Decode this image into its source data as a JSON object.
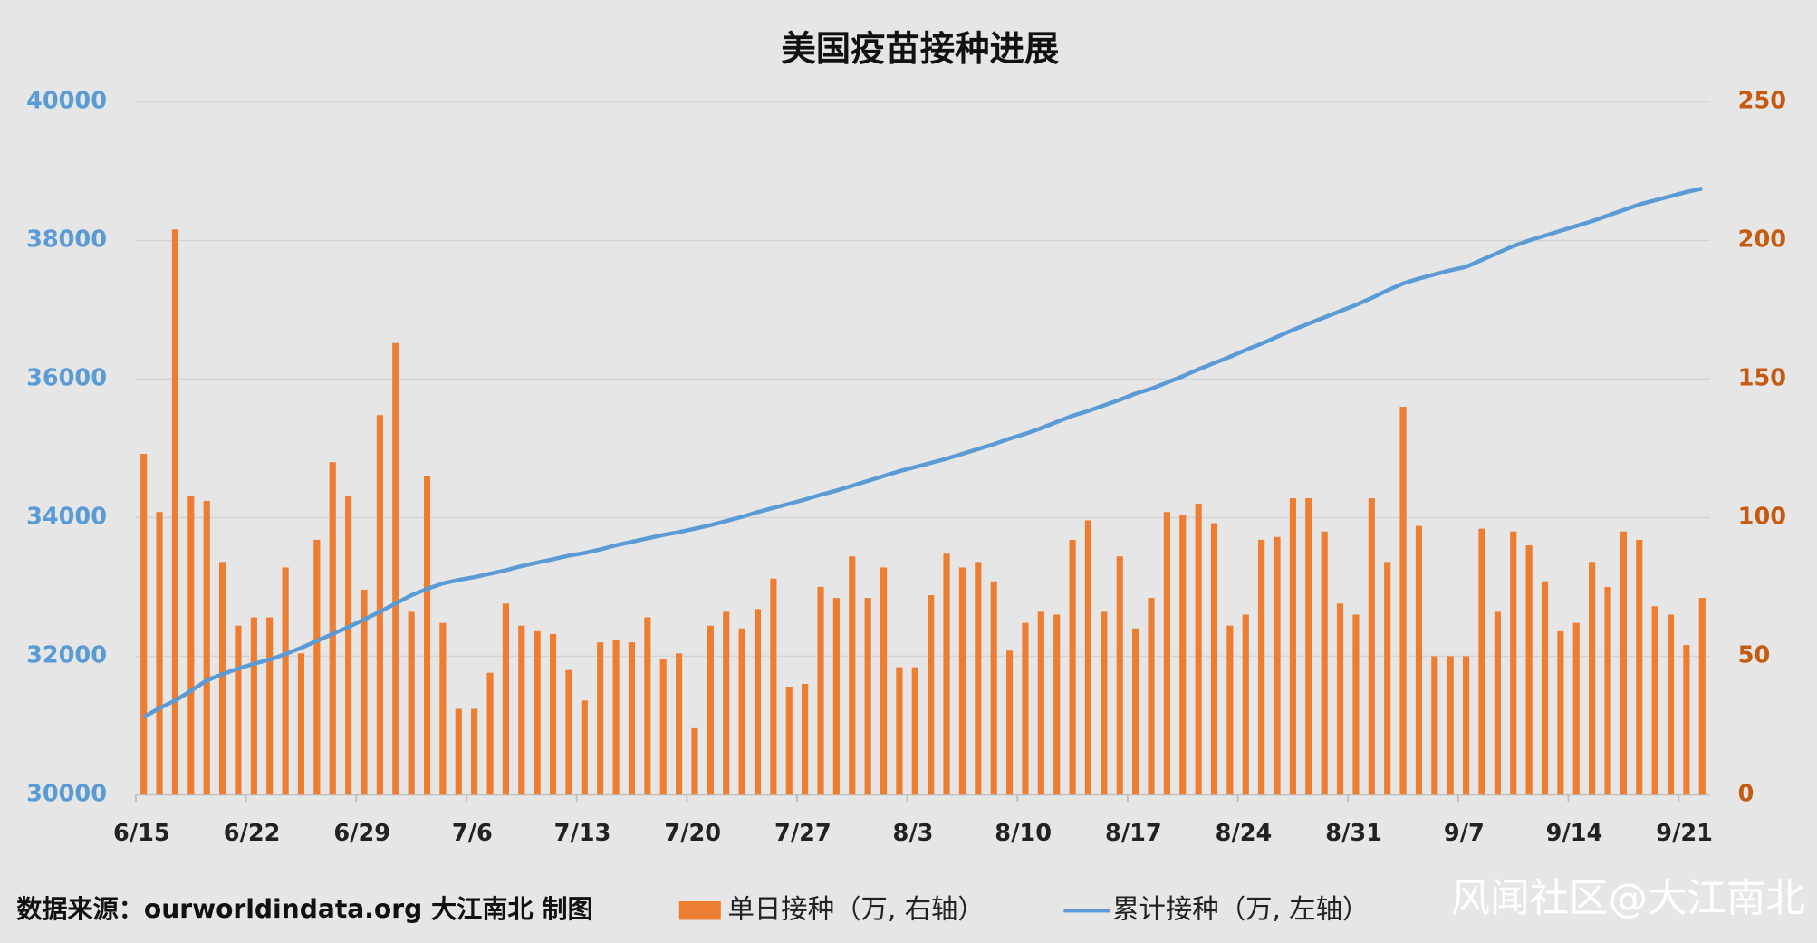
{
  "chart_data": {
    "type": "bar-line",
    "title": "美国疫苗接种进展",
    "categories": [
      "6/15",
      null,
      null,
      null,
      null,
      null,
      null,
      "6/22",
      null,
      null,
      null,
      null,
      null,
      null,
      "6/29",
      null,
      null,
      null,
      null,
      null,
      null,
      "7/6",
      null,
      null,
      null,
      null,
      null,
      null,
      "7/13",
      null,
      null,
      null,
      null,
      null,
      null,
      "7/20",
      null,
      null,
      null,
      null,
      null,
      null,
      "7/27",
      null,
      null,
      null,
      null,
      null,
      null,
      "8/3",
      null,
      null,
      null,
      null,
      null,
      null,
      "8/10",
      null,
      null,
      null,
      null,
      null,
      null,
      "8/17",
      null,
      null,
      null,
      null,
      null,
      null,
      "8/24",
      null,
      null,
      null,
      null,
      null,
      null,
      "8/31",
      null,
      null,
      null,
      null,
      null,
      null,
      "9/7",
      null,
      null,
      null,
      null,
      null,
      null,
      "9/14",
      null,
      null,
      null,
      null,
      null,
      null,
      "9/21",
      null
    ],
    "series": [
      {
        "name": "单日接种（万, 右轴）",
        "type": "bar",
        "axis": "y2",
        "color": "#ed7d31",
        "values": [
          123,
          102,
          204,
          108,
          106,
          84,
          61,
          64,
          64,
          82,
          51,
          92,
          120,
          108,
          74,
          137,
          163,
          66,
          115,
          62,
          31,
          31,
          44,
          69,
          61,
          59,
          58,
          45,
          34,
          55,
          56,
          55,
          64,
          49,
          51,
          24,
          61,
          66,
          60,
          67,
          78,
          39,
          40,
          75,
          71,
          86,
          71,
          82,
          46,
          46,
          72,
          87,
          82,
          84,
          77,
          52,
          62,
          66,
          65,
          92,
          99,
          66,
          86,
          60,
          71,
          102,
          101,
          105,
          98,
          61,
          65,
          92,
          93,
          107,
          107,
          95,
          69,
          65,
          107,
          84,
          140,
          97,
          50,
          50,
          50,
          96,
          66,
          95,
          90,
          77,
          59,
          62,
          84,
          75,
          95,
          92,
          68,
          65,
          54,
          71
        ]
      },
      {
        "name": "累计接种（万, 左轴）",
        "type": "line",
        "axis": "y",
        "color": "#5b9bd5",
        "values": [
          31120,
          31250,
          31360,
          31500,
          31650,
          31740,
          31820,
          31890,
          31950,
          32030,
          32120,
          32220,
          32320,
          32420,
          32530,
          32640,
          32760,
          32880,
          32970,
          33050,
          33100,
          33140,
          33190,
          33240,
          33300,
          33350,
          33400,
          33450,
          33490,
          33540,
          33600,
          33650,
          33700,
          33750,
          33790,
          33840,
          33890,
          33950,
          34010,
          34080,
          34140,
          34200,
          34260,
          34330,
          34390,
          34460,
          34530,
          34600,
          34670,
          34730,
          34790,
          34850,
          34920,
          34990,
          35060,
          35140,
          35210,
          35290,
          35380,
          35470,
          35540,
          35620,
          35700,
          35790,
          35860,
          35950,
          36040,
          36140,
          36230,
          36320,
          36420,
          36510,
          36610,
          36710,
          36800,
          36890,
          36980,
          37070,
          37170,
          37280,
          37380,
          37450,
          37510,
          37570,
          37620,
          37720,
          37820,
          37920,
          38000,
          38070,
          38140,
          38210,
          38280,
          38360,
          38440,
          38520,
          38580,
          38640,
          38700,
          38750
        ]
      }
    ],
    "ylim": [
      30000,
      40000
    ],
    "yticks": [
      30000,
      32000,
      34000,
      36000,
      38000,
      40000
    ],
    "y2lim": [
      0,
      250
    ],
    "y2ticks": [
      0,
      50,
      100,
      150,
      200,
      250
    ],
    "grid": true,
    "y_color": "#5b9bd5",
    "y2_color": "#c55a11",
    "source": "数据来源：ourworldindata.org 大江南北 制图",
    "watermark": "风闻社区@大江南北"
  }
}
